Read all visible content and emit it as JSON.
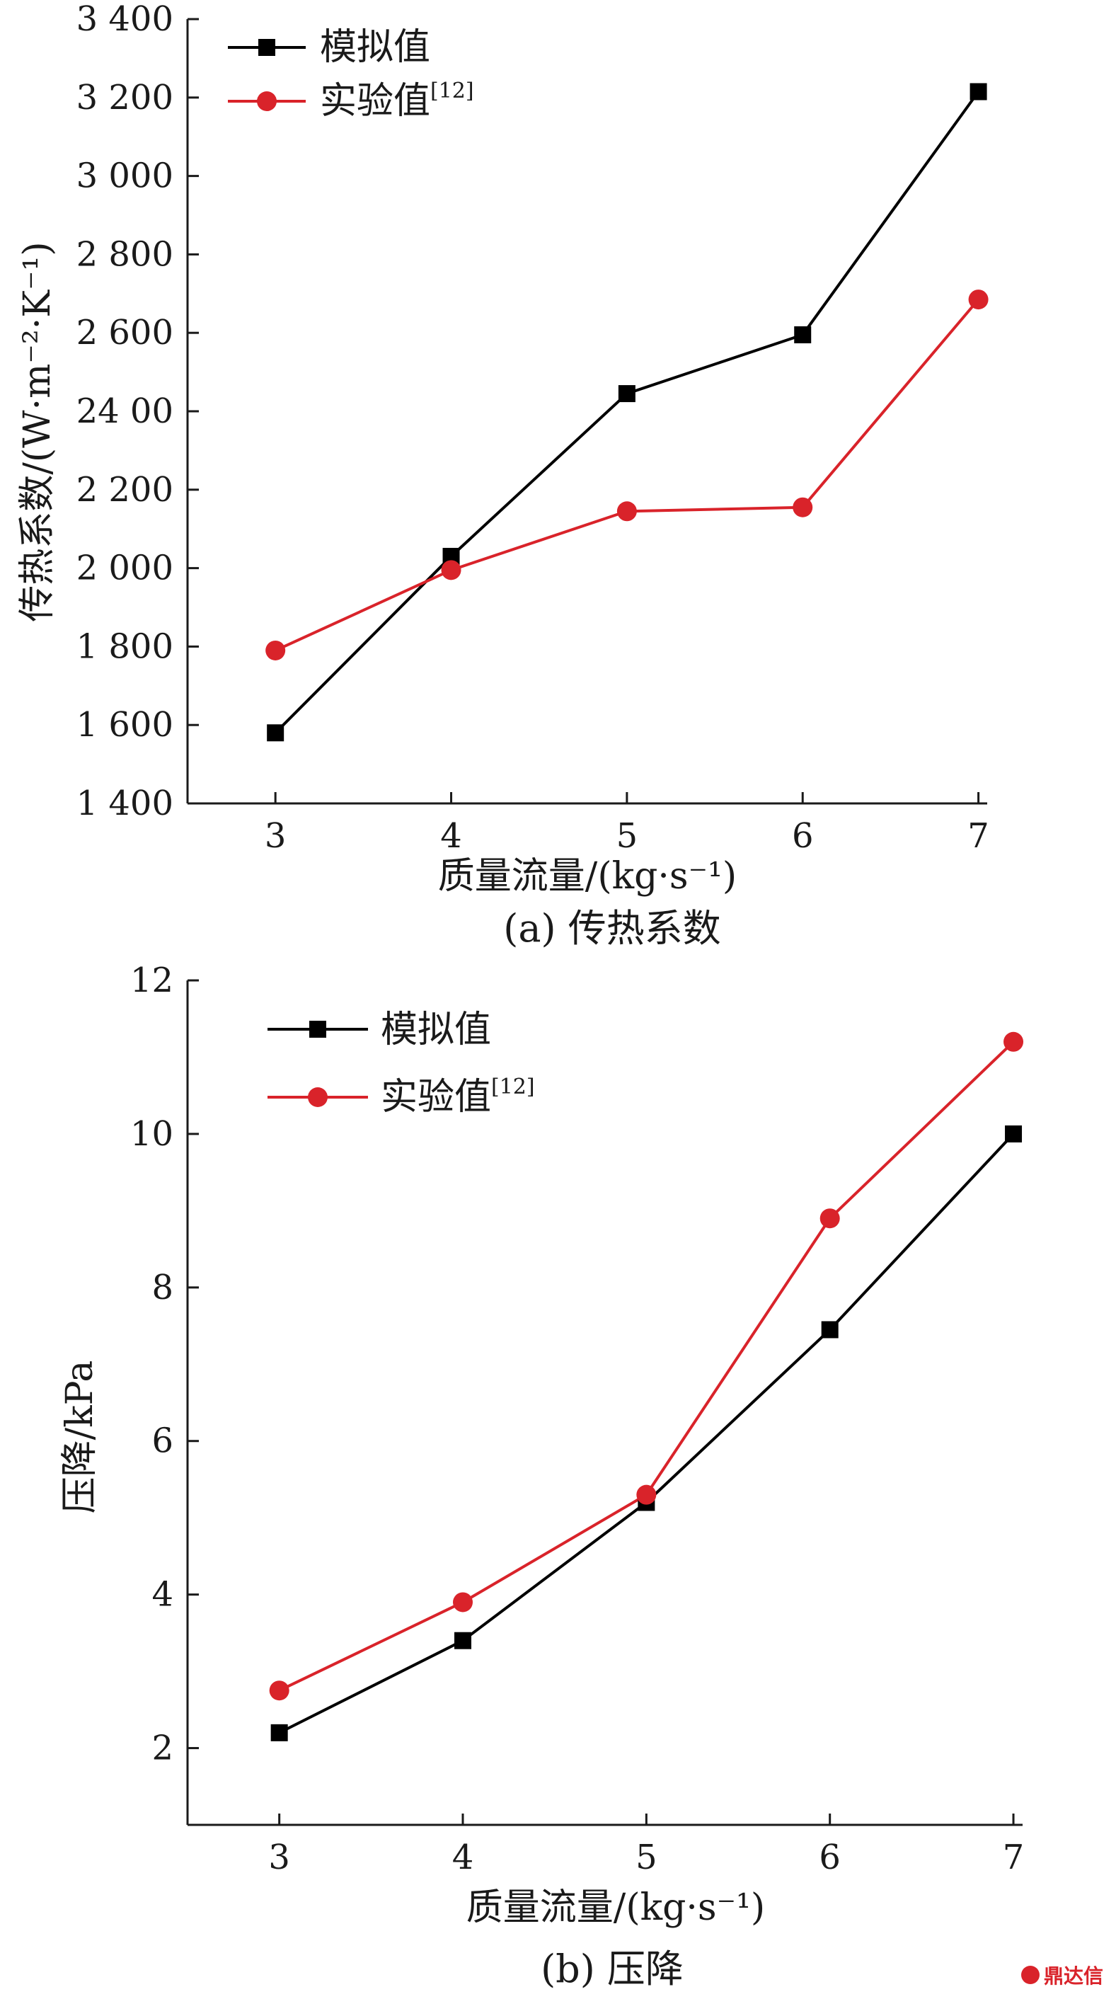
{
  "chart_data": [
    {
      "id": "a",
      "type": "line",
      "title": "(a) 传热系数",
      "xlabel": "质量流量/(kg·s⁻¹)",
      "ylabel": "传热系数/(W·m⁻²·K⁻¹)",
      "xlim": [
        2.5,
        7.05
      ],
      "ylim": [
        1400,
        3400
      ],
      "xticks": [
        3,
        4,
        5,
        6,
        7
      ],
      "yticks": [
        1400,
        1600,
        1800,
        2000,
        2200,
        2400,
        2600,
        2800,
        3000,
        3200,
        3400
      ],
      "ytick_labels": [
        "1 400",
        "1 600",
        "1 800",
        "2 000",
        "2 200",
        "24 00",
        "2 600",
        "2 800",
        "3 000",
        "3 200",
        "3 400"
      ],
      "legend_position": "top-left",
      "series": [
        {
          "name": "模拟值",
          "marker": "square",
          "color": "#000000",
          "x": [
            3,
            4,
            5,
            6,
            7
          ],
          "y": [
            1580,
            2030,
            2445,
            2595,
            3215
          ]
        },
        {
          "name": "实验值",
          "name_ref": "[12]",
          "marker": "circle",
          "color": "#d9232a",
          "x": [
            3,
            4,
            5,
            6,
            7
          ],
          "y": [
            1790,
            1995,
            2145,
            2155,
            2685
          ]
        }
      ]
    },
    {
      "id": "b",
      "type": "line",
      "title": "(b) 压降",
      "xlabel": "质量流量/(kg·s⁻¹)",
      "ylabel": "压降/kPa",
      "xlim": [
        2.5,
        7.05
      ],
      "ylim": [
        1,
        12
      ],
      "xticks": [
        3,
        4,
        5,
        6,
        7
      ],
      "yticks": [
        2,
        4,
        6,
        8,
        10,
        12
      ],
      "ytick_labels": [
        "2",
        "4",
        "6",
        "8",
        "10",
        "12"
      ],
      "legend_position": "top-left",
      "series": [
        {
          "name": "模拟值",
          "marker": "square",
          "color": "#000000",
          "x": [
            3,
            4,
            5,
            6,
            7
          ],
          "y": [
            2.2,
            3.4,
            5.2,
            7.45,
            10.0
          ]
        },
        {
          "name": "实验值",
          "name_ref": "[12]",
          "marker": "circle",
          "color": "#d9232a",
          "x": [
            3,
            4,
            5,
            6,
            7
          ],
          "y": [
            2.75,
            3.9,
            5.3,
            8.9,
            11.2
          ]
        }
      ]
    }
  ],
  "watermark": {
    "text": "鼎达信"
  }
}
